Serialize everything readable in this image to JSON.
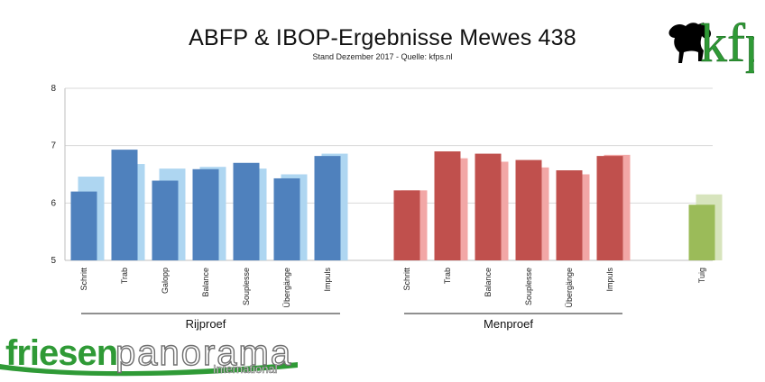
{
  "title": "ABFP & IBOP-Ergebnisse Mewes 438",
  "subtitle": "Stand Dezember 2017 - Quelle: kfps.nl",
  "logos": {
    "kfps_letters": "kfp",
    "friesenpanorama": {
      "part1": "friesen",
      "part2": "panorama",
      "part3": "International"
    }
  },
  "colors": {
    "rijproef_main": "#4f81bd",
    "rijproef_light": "#aed6f1",
    "menproef_main": "#c0504d",
    "menproef_light": "#f2a7a6",
    "tuig_main": "#9bbb59",
    "tuig_light": "#d7e4bd",
    "grid": "#d9d9d9",
    "brand_green": "#2f9a36"
  },
  "chart_data": {
    "type": "bar",
    "ylim": [
      5,
      8
    ],
    "yticks": [
      5,
      6,
      7,
      8
    ],
    "grid": true,
    "groups": [
      {
        "name": "Rijproef",
        "categories": [
          "Schritt",
          "Trab",
          "Galopp",
          "Balance",
          "Souplesse",
          "Übergänge",
          "Impuls"
        ],
        "values": [
          6.2,
          6.93,
          6.39,
          6.59,
          6.7,
          6.43,
          6.82
        ],
        "reference_values": [
          6.46,
          6.68,
          6.6,
          6.63,
          6.6,
          6.5,
          6.86
        ],
        "color": "#4f81bd",
        "reference_color": "#aed6f1"
      },
      {
        "name": "Menproef",
        "categories": [
          "Schritt",
          "Trab",
          "Balance",
          "Souplesse",
          "Übergänge",
          "Impuls"
        ],
        "values": [
          6.22,
          6.9,
          6.86,
          6.75,
          6.57,
          6.82
        ],
        "reference_values": [
          6.22,
          6.78,
          6.72,
          6.62,
          6.5,
          6.84
        ],
        "color": "#c0504d",
        "reference_color": "#f2a7a6"
      },
      {
        "name": "",
        "categories": [
          "Tuig"
        ],
        "values": [
          5.97
        ],
        "reference_values": [
          6.15
        ],
        "color": "#9bbb59",
        "reference_color": "#d7e4bd"
      }
    ]
  }
}
